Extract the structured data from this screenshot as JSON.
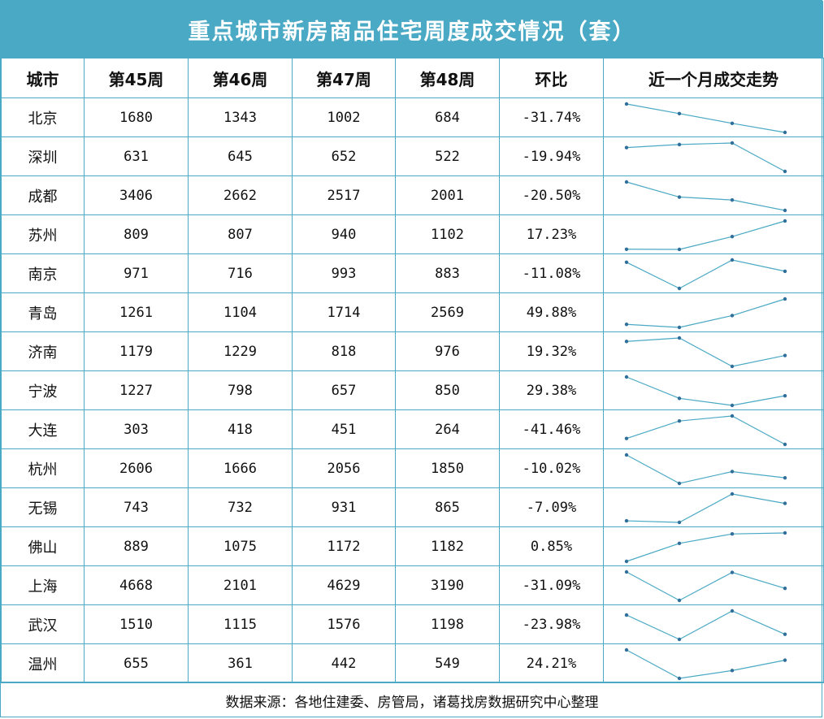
{
  "chart_data": {
    "type": "table",
    "title": "重点城市新房商品住宅周度成交情况（套）",
    "columns": [
      "城市",
      "第45周",
      "第46周",
      "第47周",
      "第48周",
      "环比",
      "近一个月成交走势"
    ],
    "rows": [
      {
        "city": "北京",
        "w45": 1680,
        "w46": 1343,
        "w47": 1002,
        "w48": 684,
        "mom": "-31.74%"
      },
      {
        "city": "深圳",
        "w45": 631,
        "w46": 645,
        "w47": 652,
        "w48": 522,
        "mom": "-19.94%"
      },
      {
        "city": "成都",
        "w45": 3406,
        "w46": 2662,
        "w47": 2517,
        "w48": 2001,
        "mom": "-20.50%"
      },
      {
        "city": "苏州",
        "w45": 809,
        "w46": 807,
        "w47": 940,
        "w48": 1102,
        "mom": "17.23%"
      },
      {
        "city": "南京",
        "w45": 971,
        "w46": 716,
        "w47": 993,
        "w48": 883,
        "mom": "-11.08%"
      },
      {
        "city": "青岛",
        "w45": 1261,
        "w46": 1104,
        "w47": 1714,
        "w48": 2569,
        "mom": "49.88%"
      },
      {
        "city": "济南",
        "w45": 1179,
        "w46": 1229,
        "w47": 818,
        "w48": 976,
        "mom": "19.32%"
      },
      {
        "city": "宁波",
        "w45": 1227,
        "w46": 798,
        "w47": 657,
        "w48": 850,
        "mom": "29.38%"
      },
      {
        "city": "大连",
        "w45": 303,
        "w46": 418,
        "w47": 451,
        "w48": 264,
        "mom": "-41.46%"
      },
      {
        "city": "杭州",
        "w45": 2606,
        "w46": 1666,
        "w47": 2056,
        "w48": 1850,
        "mom": "-10.02%"
      },
      {
        "city": "无锡",
        "w45": 743,
        "w46": 732,
        "w47": 931,
        "w48": 865,
        "mom": "-7.09%"
      },
      {
        "city": "佛山",
        "w45": 889,
        "w46": 1075,
        "w47": 1172,
        "w48": 1182,
        "mom": "0.85%"
      },
      {
        "city": "上海",
        "w45": 4668,
        "w46": 2101,
        "w47": 4629,
        "w48": 3190,
        "mom": "-31.09%"
      },
      {
        "city": "武汉",
        "w45": 1510,
        "w46": 1115,
        "w47": 1576,
        "w48": 1198,
        "mom": "-23.98%"
      },
      {
        "city": "温州",
        "w45": 655,
        "w46": 361,
        "w47": 442,
        "w48": 549,
        "mom": "24.21%"
      }
    ],
    "sparkline_color": "#4aa9c4"
  },
  "footer": "数据来源：各地住建委、房管局，诸葛找房数据研究中心整理",
  "colors": {
    "header_bg": "#4aa9c4",
    "border": "#4aa9c4",
    "title_text": "#ffffff"
  }
}
